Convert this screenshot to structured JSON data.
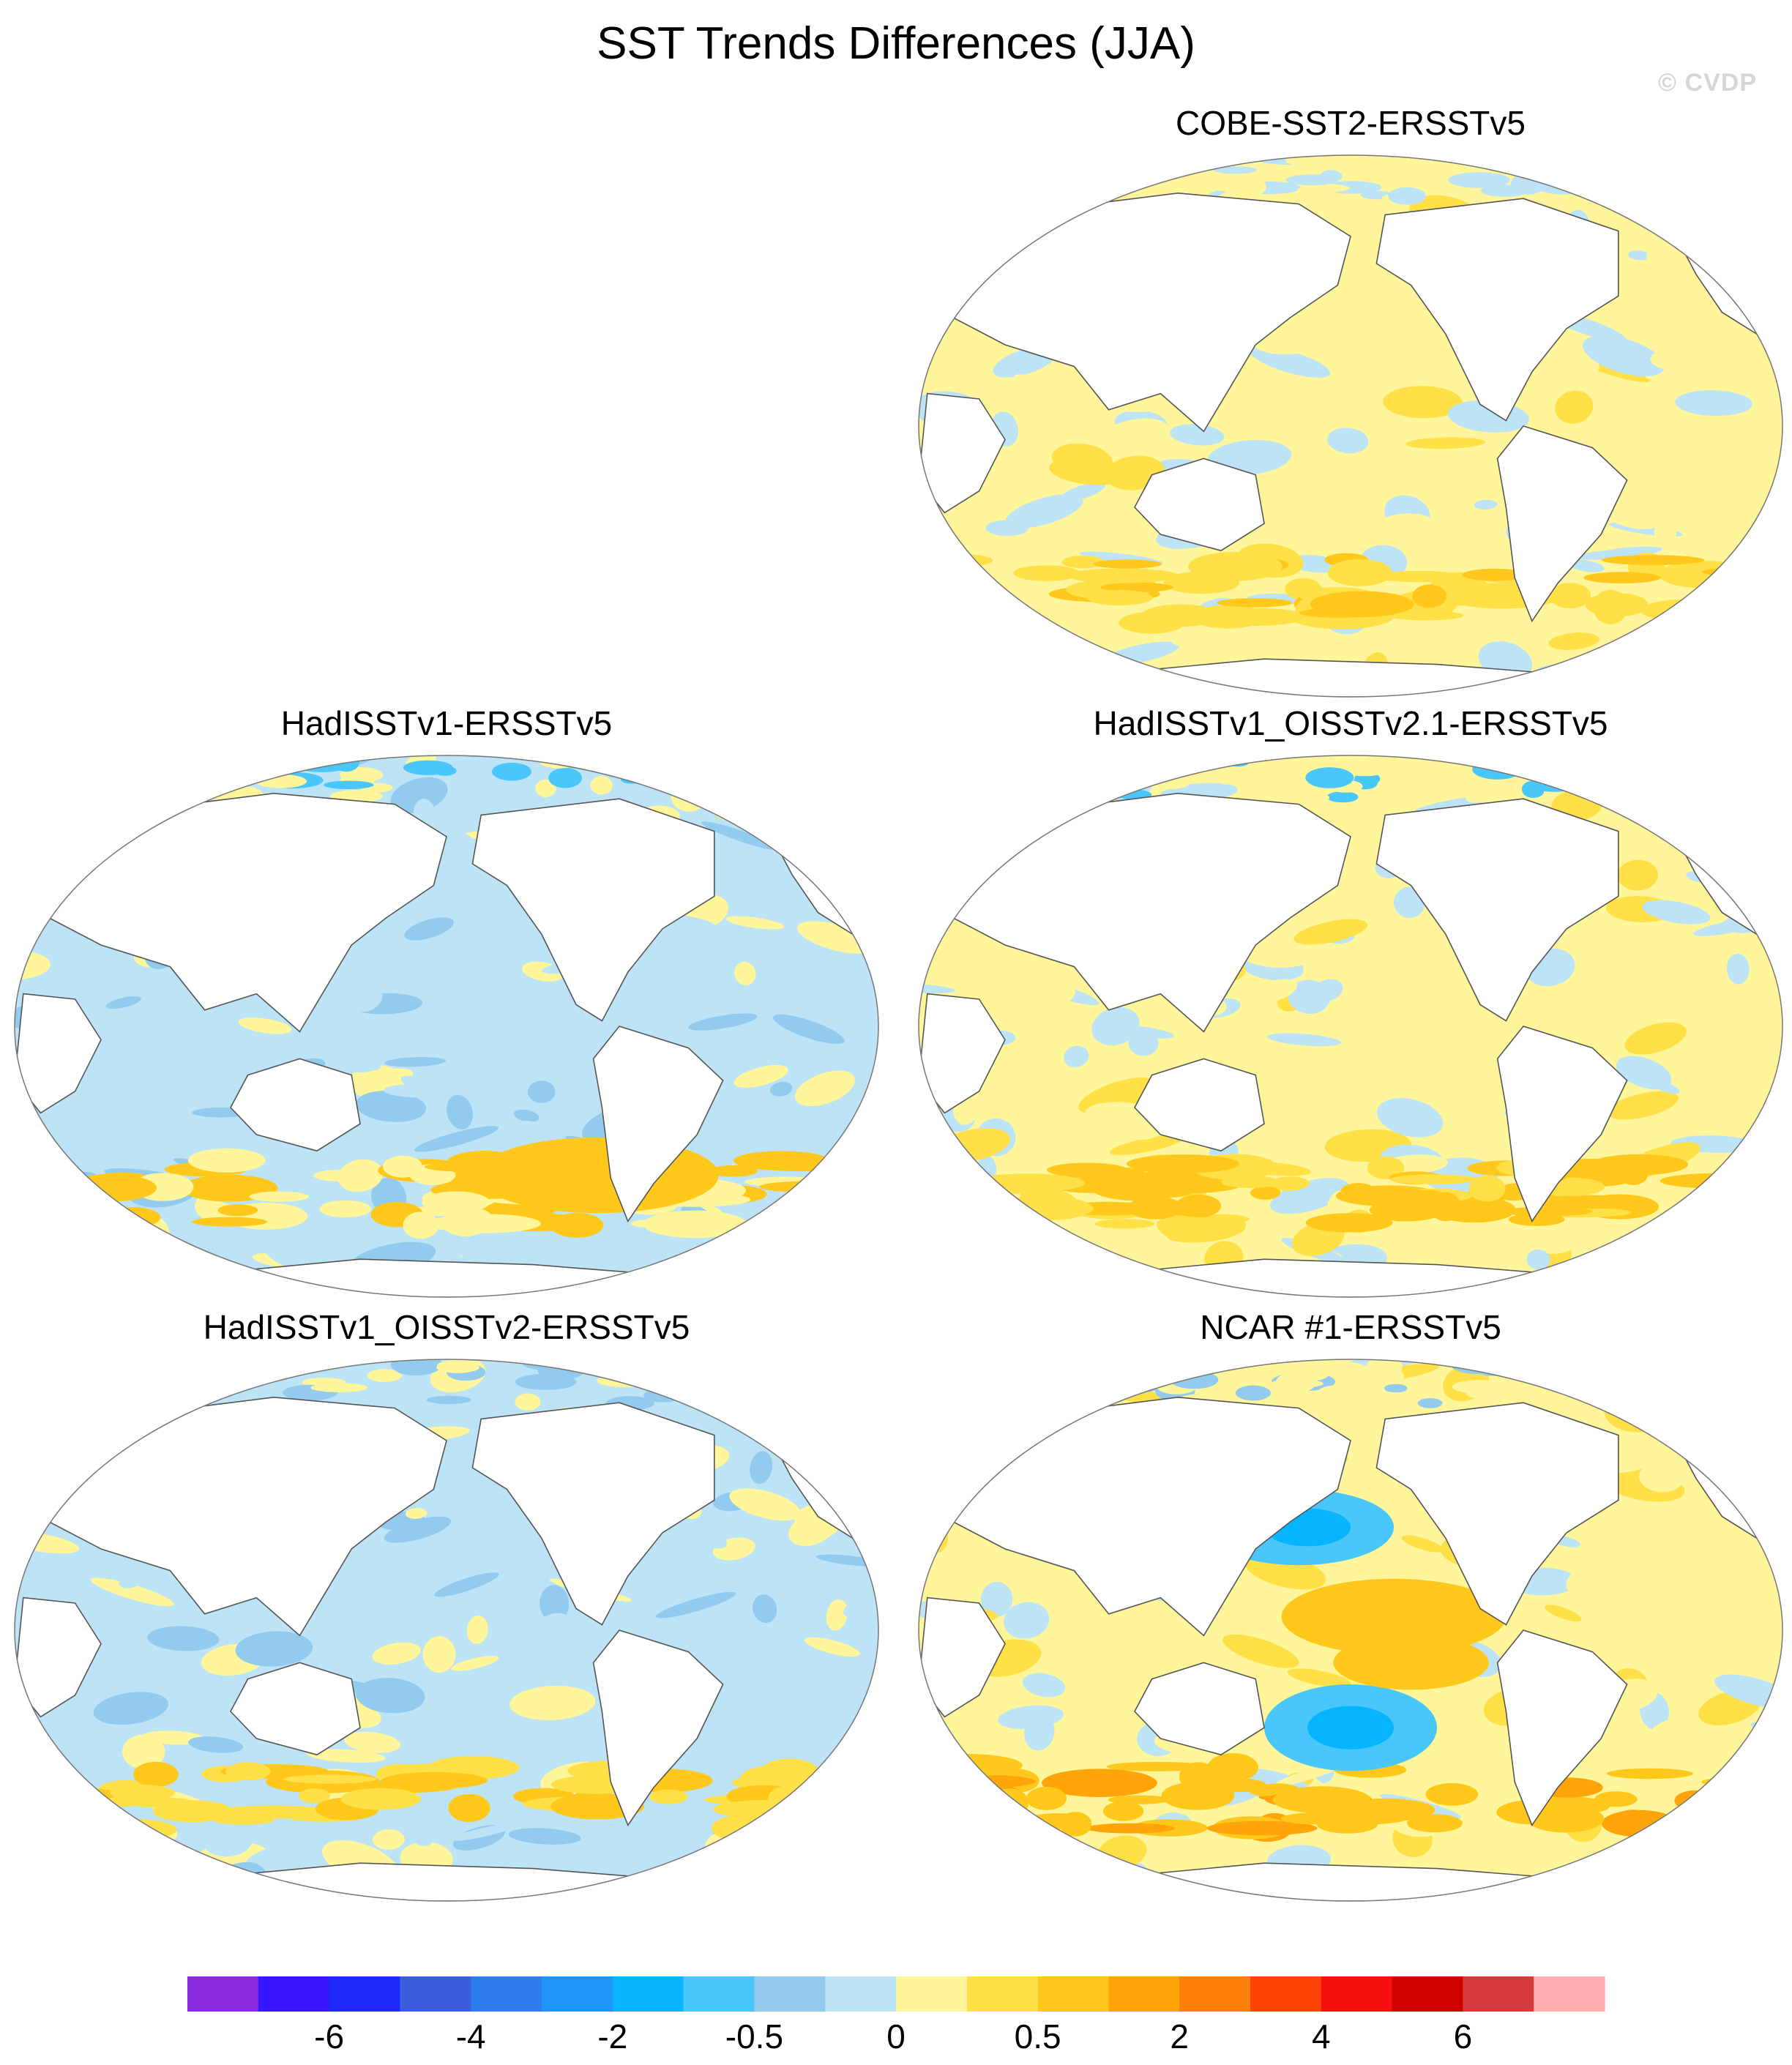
{
  "title": "SST Trends Differences (JJA)",
  "watermark": "© CVDP",
  "panels": [
    {
      "id": "p1",
      "title": "COBE-SST2-ERSSTv5"
    },
    {
      "id": "p2",
      "title": "HadISSTv1-ERSSTv5"
    },
    {
      "id": "p3",
      "title": "HadISSTv1_OISSTv2.1-ERSSTv5"
    },
    {
      "id": "p4",
      "title": "HadISSTv1_OISSTv2-ERSSTv5"
    },
    {
      "id": "p5",
      "title": "NCAR #1-ERSSTv5"
    }
  ],
  "chart_data": {
    "type": "heatmap",
    "projection": "Robinson (global map, Pacific-centred)",
    "colorbar": {
      "colors": [
        "#8a2be2",
        "#3814ff",
        "#1f29f5",
        "#3b5ee0",
        "#2f7cf0",
        "#1e96f7",
        "#06b4ff",
        "#49c6fa",
        "#93cbef",
        "#bde3f7",
        "#fff59a",
        "#ffe047",
        "#ffc81a",
        "#ffa50a",
        "#ff7e0c",
        "#ff4505",
        "#f70f0f",
        "#cf0202",
        "#d63a3a",
        "#ffb0b0"
      ],
      "tick_labels": [
        "-6",
        "-4",
        "-2",
        "-0.5",
        "0",
        "0.5",
        "2",
        "4",
        "6"
      ],
      "tick_boundary_index": [
        2,
        4,
        6,
        8,
        10,
        12,
        14,
        16,
        18
      ]
    },
    "panels": [
      {
        "title": "COBE-SST2-ERSSTv5",
        "dominant_range": [
          "-0.5",
          "0.5"
        ],
        "features": [
          "mostly light yellow (0 to 0.5)",
          "light blue patches (-0.5 to 0) in North Pacific and Indian Ocean",
          "orange (0.5 to 2) bands in Southern Ocean"
        ]
      },
      {
        "title": "HadISSTv1-ERSSTv5",
        "dominant_range": [
          "-2",
          "0.5"
        ],
        "features": [
          "mostly light blue (-0.5 to 0)",
          "blue (-2 to -0.5) in North Pacific",
          "orange (0.5 to 2) in South Pacific near South America"
        ]
      },
      {
        "title": "HadISSTv1_OISSTv2.1-ERSSTv5",
        "dominant_range": [
          "-0.5",
          "2"
        ],
        "features": [
          "mostly yellow (0 to 0.5)",
          "orange (0.5 to 2) in Southern Ocean band",
          "blue in Arctic"
        ]
      },
      {
        "title": "HadISSTv1_OISSTv2-ERSSTv5",
        "dominant_range": [
          "-2",
          "0.5"
        ],
        "features": [
          "mostly light blue (-0.5 to 0)",
          "yellow patches",
          "orange band in Southern Ocean"
        ]
      },
      {
        "title": "NCAR #1-ERSSTv5",
        "dominant_range": [
          "-2",
          "2"
        ],
        "features": [
          "strong blue (-2 to -0.5) in North Pacific and South Pacific near New Zealand",
          "large orange (0.5 to 2) regions in Southern Ocean and eastern Pacific"
        ]
      }
    ]
  }
}
